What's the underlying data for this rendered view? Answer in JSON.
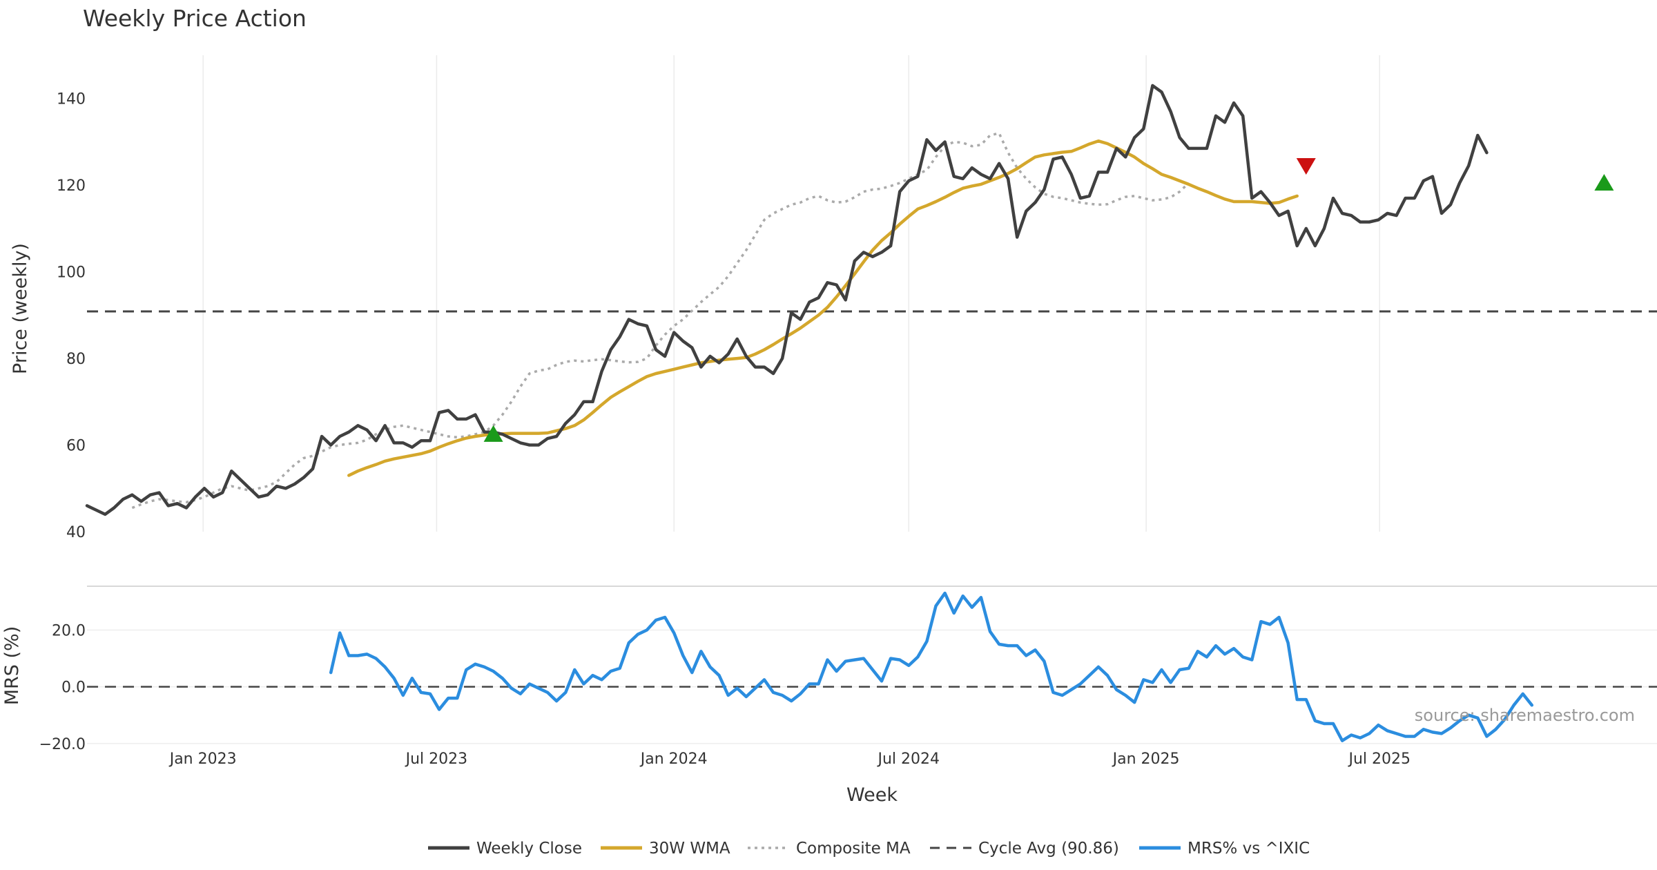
{
  "chart_data": {
    "type": "line",
    "title": "Weekly Price Action",
    "xlabel": "Week",
    "x_ticks": [
      "Jan 2023",
      "Jul 2023",
      "Jan 2024",
      "Jul 2024",
      "Jan 2025",
      "Jul 2025"
    ],
    "x_range": [
      "2022-10-03",
      "2026-02-01"
    ],
    "price_panel": {
      "ylabel": "Price (weekly)",
      "ylim": [
        40,
        150
      ],
      "y_ticks": [
        "40",
        "60",
        "80",
        "100",
        "120",
        "140"
      ],
      "cycle_avg": 90.86,
      "series": [
        {
          "name": "Weekly Close",
          "color": "#404040",
          "style": "solid",
          "start": "2022-10-03",
          "values": [
            46,
            45,
            44,
            45.5,
            47.5,
            48.5,
            47,
            48.5,
            49,
            46,
            46.5,
            45.5,
            48,
            50,
            48,
            49,
            54,
            52,
            50,
            48,
            48.5,
            50.5,
            50,
            51,
            52.5,
            54.5,
            62,
            60,
            62,
            63,
            64.5,
            63.5,
            61,
            64.5,
            60.5,
            60.5,
            59.5,
            61,
            61,
            67.5,
            68,
            66,
            66,
            67,
            63,
            63,
            62.5,
            61.5,
            60.5,
            60,
            60,
            61.5,
            62,
            65,
            67,
            70,
            70,
            77,
            82,
            85,
            89,
            88,
            87.5,
            82,
            80.5,
            86,
            84,
            82.5,
            78,
            80.5,
            79,
            81,
            84.5,
            80.5,
            78,
            78,
            76.5,
            80,
            90.5,
            89,
            93,
            94,
            97.5,
            97,
            93.5,
            102.5,
            104.5,
            103.5,
            104.5,
            106,
            118.5,
            121,
            122,
            130.5,
            128,
            130,
            122,
            121.5,
            124,
            122.5,
            121.5,
            125,
            121.5,
            108,
            114,
            116,
            119,
            126,
            126.5,
            122.5,
            117,
            117.5,
            123,
            123,
            128.5,
            126.5,
            131,
            133,
            143,
            141.5,
            137,
            131,
            128.5,
            128.5,
            128.5,
            136,
            134.5,
            139,
            136,
            117,
            118.5,
            116,
            113,
            114,
            106,
            110,
            106,
            110,
            117,
            113.5,
            113,
            111.5,
            111.5,
            112,
            113.5,
            113,
            117,
            117,
            121,
            122,
            113.5,
            115.5,
            120.5,
            124.5,
            131.5,
            127.5
          ]
        },
        {
          "name": "30W WMA",
          "color": "#d4a72c",
          "style": "solid",
          "start": "2023-04-24",
          "values": [
            53,
            54,
            54.8,
            55.5,
            56.3,
            56.8,
            57.2,
            57.6,
            58,
            58.6,
            59.5,
            60.3,
            61,
            61.6,
            62,
            62.3,
            62.5,
            62.6,
            62.7,
            62.7,
            62.7,
            62.7,
            62.8,
            63.3,
            63.8,
            64.5,
            65.8,
            67.5,
            69.3,
            71,
            72.3,
            73.5,
            74.7,
            75.8,
            76.5,
            77,
            77.5,
            78,
            78.5,
            79,
            79.3,
            79.6,
            79.8,
            80,
            80.2,
            81,
            82,
            83.2,
            84.5,
            85.7,
            87,
            88.5,
            90,
            91.8,
            94.2,
            96.8,
            99.5,
            102.3,
            105,
            107.2,
            109,
            111,
            112.8,
            114.5,
            115.3,
            116.2,
            117.2,
            118.3,
            119.3,
            119.8,
            120.2,
            121,
            121.8,
            122.7,
            123.8,
            125.2,
            126.5,
            127,
            127.3,
            127.6,
            127.8,
            128.6,
            129.5,
            130.2,
            129.6,
            128.6,
            127.6,
            126.5,
            125,
            123.8,
            122.5,
            121.8,
            121,
            120.2,
            119.3,
            118.5,
            117.6,
            116.8,
            116.2,
            116.2,
            116.2,
            116,
            115.8,
            116,
            116.8,
            117.5
          ]
        },
        {
          "name": "Composite MA",
          "color": "#aaaaaa",
          "style": "dotted",
          "start": "2022-11-07",
          "values": [
            45.5,
            46.3,
            47,
            47.5,
            47.3,
            47,
            46.8,
            47.3,
            48,
            49,
            50,
            50.5,
            50,
            49.5,
            50,
            50.5,
            51.5,
            53.5,
            55.5,
            57,
            57.5,
            58.5,
            59.5,
            60,
            60.3,
            60.5,
            61.2,
            62.5,
            63.5,
            64.2,
            64.5,
            64,
            63.5,
            63,
            62.5,
            62,
            61.8,
            62,
            62.5,
            63,
            64.5,
            67,
            70,
            73.5,
            76.5,
            77.2,
            77.5,
            78.5,
            79.2,
            79.5,
            79.3,
            79.6,
            79.8,
            79.6,
            79.3,
            79.1,
            79.2,
            80,
            83,
            85.5,
            87.5,
            89,
            91,
            93,
            94.8,
            96.5,
            99,
            102,
            105,
            108.5,
            112,
            113.5,
            114.5,
            115.5,
            116,
            117,
            117.5,
            116.5,
            116,
            116.2,
            117.2,
            118.5,
            119,
            119.2,
            119.8,
            120.5,
            121.5,
            122.5,
            123.5,
            126.5,
            129,
            130,
            129.8,
            129,
            129.3,
            131.5,
            132,
            127.5,
            124,
            121.5,
            119.5,
            118,
            117.3,
            117,
            116.5,
            116,
            115.7,
            115.5,
            115.6,
            116.5,
            117.3,
            117.5,
            117,
            116.5,
            116.7,
            117.2,
            118.5,
            120.5
          ]
        }
      ],
      "signals": [
        {
          "type": "buy",
          "date": "2023-08-14",
          "price": 62.5,
          "color": "#1a9a1a"
        },
        {
          "type": "sell",
          "date": "2025-05-05",
          "price": 124.5,
          "color": "#cc1111"
        },
        {
          "type": "buy",
          "date": "2025-12-22",
          "price": 120.5,
          "color": "#1a9a1a"
        }
      ]
    },
    "mrs_panel": {
      "ylabel": "MRS (%)",
      "ylim": [
        -22,
        34
      ],
      "y_ticks": [
        "−20.0",
        "0.0",
        "20.0"
      ],
      "zero_line": 0,
      "series": [
        {
          "name": "MRS% vs ^IXIC",
          "color": "#2b8ddf",
          "style": "solid",
          "start": "2023-04-10",
          "values": [
            5,
            19,
            11,
            11,
            11.5,
            10,
            7,
            3,
            -3,
            3,
            -2,
            -2.5,
            -8,
            -4,
            -4,
            6,
            8,
            7,
            5.5,
            3,
            -0.5,
            -2.5,
            1,
            -0.5,
            -2,
            -5,
            -2,
            6,
            1,
            4,
            2.5,
            5.5,
            6.5,
            15.5,
            18.5,
            20,
            23.5,
            24.5,
            19,
            11,
            5,
            12.5,
            7,
            4,
            -3,
            -0.5,
            -3.5,
            -0.5,
            2.5,
            -2,
            -3,
            -5,
            -2.5,
            1,
            1,
            9.5,
            5.5,
            9,
            9.5,
            10,
            6,
            2,
            10,
            9.5,
            7.5,
            10.5,
            16,
            28.5,
            33,
            26,
            32,
            28,
            31.5,
            19.5,
            15,
            14.5,
            14.5,
            11,
            13,
            9,
            -2,
            -3,
            -1,
            1,
            4,
            7,
            4,
            -1,
            -3,
            -5.5,
            2.5,
            1.5,
            6,
            1.5,
            6,
            6.5,
            12.5,
            10.5,
            14.5,
            11.5,
            13.5,
            10.5,
            9.5,
            23,
            22,
            24.5,
            15.5,
            -4.5,
            -4.5,
            -12,
            -13,
            -13,
            -19,
            -17,
            -18,
            -16.5,
            -13.5,
            -15.5,
            -16.5,
            -17.5,
            -17.5,
            -15,
            -16,
            -16.5,
            -14.5,
            -12,
            -10,
            -11,
            -17.5,
            -15,
            -11.5,
            -6.5,
            -2.5,
            -6.5
          ]
        }
      ]
    },
    "legend": {
      "placement": "bottom-center",
      "entries": [
        "Weekly Close",
        "30W WMA",
        "Composite MA",
        "Cycle Avg (90.86)",
        "MRS% vs ^IXIC"
      ]
    },
    "grid": true,
    "watermark": "source: sharemaestro.com"
  }
}
